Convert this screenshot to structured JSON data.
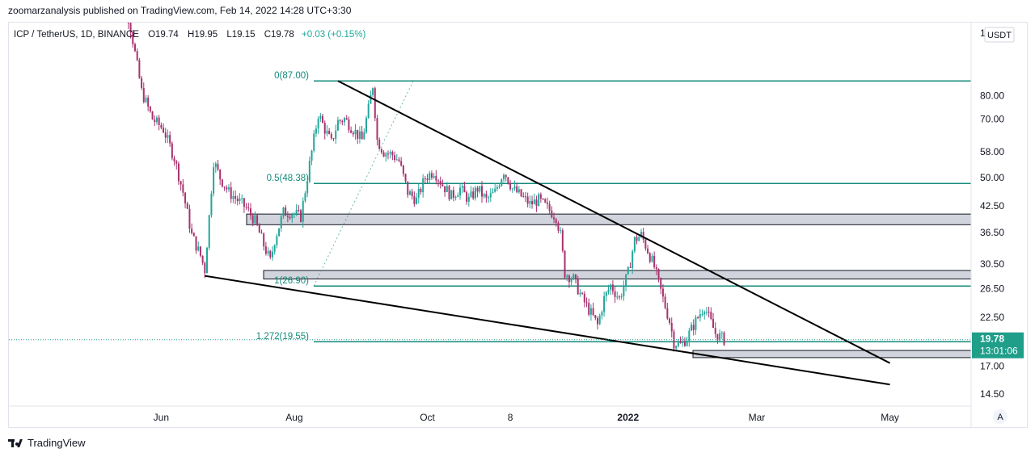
{
  "header": {
    "published": "zoomarzanalysis published on TradingView.com, Feb 14, 2022 14:28 UTC+3:30"
  },
  "legend": {
    "symbol": "ICP / TetherUS, 1D, BINANCE",
    "open": "O19.74",
    "high": "H19.95",
    "low": "L19.15",
    "close": "C19.78",
    "change": "+0.03 (+0.15%)",
    "up_color": "#22a69a",
    "down_color": "#a8326e"
  },
  "price_axis": {
    "currency_button": "USDT",
    "top_partial": "1",
    "ticks": [
      "80.00",
      "70.00",
      "58.00",
      "50.00",
      "42.50",
      "36.50",
      "30.50",
      "26.50",
      "22.50",
      "17.00",
      "14.50"
    ],
    "last_price": "19.78",
    "countdown": "13:01:06",
    "last_price_bg": "#1f9e8a"
  },
  "time_axis": {
    "ticks": [
      "Jun",
      "Aug",
      "Oct",
      "8",
      "2022",
      "Mar",
      "May"
    ],
    "bold_tick": "2022",
    "auto_button": "A"
  },
  "footer": {
    "brand": "TradingView"
  },
  "chart_data": {
    "type": "candlestick",
    "scale": "log",
    "x_range": [
      "2021-05-10",
      "2022-06-05"
    ],
    "y_range": [
      12.5,
      116
    ],
    "fib_levels": [
      {
        "label": "0(87.00)",
        "price": 87.0
      },
      {
        "label": "0.5(48.38)",
        "price": 48.38
      },
      {
        "label": "1(26.90)",
        "price": 26.9
      },
      {
        "label": "1.272(19.55)",
        "price": 19.55
      }
    ],
    "zones": [
      {
        "from": 38.2,
        "to": 40.6
      },
      {
        "from": 28.0,
        "to": 29.4
      },
      {
        "from": 17.85,
        "to": 18.6
      }
    ],
    "trendlines": [
      {
        "name": "upper",
        "points": [
          [
            "2021-08-21",
            87.0
          ],
          [
            "2022-05-01",
            17.3
          ]
        ]
      },
      {
        "name": "lower",
        "points": [
          [
            "2021-06-21",
            28.5
          ],
          [
            "2022-05-01",
            15.3
          ]
        ]
      }
    ],
    "price_path": [
      [
        "2021-05-10",
        190
      ],
      [
        "2021-05-18",
        118
      ],
      [
        "2021-05-23",
        82
      ],
      [
        "2021-05-28",
        70
      ],
      [
        "2021-06-02",
        66
      ],
      [
        "2021-06-07",
        56
      ],
      [
        "2021-06-11",
        46
      ],
      [
        "2021-06-15",
        36
      ],
      [
        "2021-06-19",
        32
      ],
      [
        "2021-06-21",
        29.5
      ],
      [
        "2021-06-23",
        40
      ],
      [
        "2021-06-25",
        55
      ],
      [
        "2021-06-28",
        50
      ],
      [
        "2021-07-02",
        46
      ],
      [
        "2021-07-06",
        44
      ],
      [
        "2021-07-10",
        42
      ],
      [
        "2021-07-14",
        39
      ],
      [
        "2021-07-18",
        34
      ],
      [
        "2021-07-21",
        31
      ],
      [
        "2021-07-23",
        35
      ],
      [
        "2021-07-27",
        41
      ],
      [
        "2021-07-31",
        41
      ],
      [
        "2021-08-04",
        40
      ],
      [
        "2021-08-08",
        54
      ],
      [
        "2021-08-12",
        72
      ],
      [
        "2021-08-15",
        66
      ],
      [
        "2021-08-18",
        61
      ],
      [
        "2021-08-21",
        69
      ],
      [
        "2021-08-24",
        70
      ],
      [
        "2021-08-28",
        66
      ],
      [
        "2021-09-01",
        62
      ],
      [
        "2021-09-04",
        74
      ],
      [
        "2021-09-06",
        85
      ],
      [
        "2021-09-08",
        62
      ],
      [
        "2021-09-11",
        58
      ],
      [
        "2021-09-15",
        57
      ],
      [
        "2021-09-18",
        55
      ],
      [
        "2021-09-22",
        46
      ],
      [
        "2021-09-26",
        44
      ],
      [
        "2021-09-30",
        50
      ],
      [
        "2021-10-04",
        52
      ],
      [
        "2021-10-08",
        48
      ],
      [
        "2021-10-12",
        45
      ],
      [
        "2021-10-16",
        47
      ],
      [
        "2021-10-20",
        44
      ],
      [
        "2021-10-24",
        47
      ],
      [
        "2021-10-28",
        44
      ],
      [
        "2021-11-01",
        46
      ],
      [
        "2021-11-05",
        52
      ],
      [
        "2021-11-09",
        47
      ],
      [
        "2021-11-13",
        45
      ],
      [
        "2021-11-17",
        43
      ],
      [
        "2021-11-21",
        44
      ],
      [
        "2021-11-25",
        42
      ],
      [
        "2021-11-29",
        40
      ],
      [
        "2021-12-01",
        36
      ],
      [
        "2021-12-03",
        29
      ],
      [
        "2021-12-07",
        28
      ],
      [
        "2021-12-11",
        25
      ],
      [
        "2021-12-15",
        23
      ],
      [
        "2021-12-18",
        21.5
      ],
      [
        "2021-12-21",
        25
      ],
      [
        "2021-12-24",
        27
      ],
      [
        "2021-12-28",
        25
      ],
      [
        "2022-01-01",
        29
      ],
      [
        "2022-01-04",
        35
      ],
      [
        "2022-01-07",
        36
      ],
      [
        "2022-01-10",
        33
      ],
      [
        "2022-01-13",
        30
      ],
      [
        "2022-01-17",
        25
      ],
      [
        "2022-01-20",
        22
      ],
      [
        "2022-01-22",
        19.5
      ],
      [
        "2022-01-25",
        19.2
      ],
      [
        "2022-01-28",
        20
      ],
      [
        "2022-01-31",
        21.5
      ],
      [
        "2022-02-03",
        23
      ],
      [
        "2022-02-05",
        24
      ],
      [
        "2022-02-07",
        22.5
      ],
      [
        "2022-02-10",
        20.5
      ],
      [
        "2022-02-14",
        19.78
      ]
    ]
  }
}
